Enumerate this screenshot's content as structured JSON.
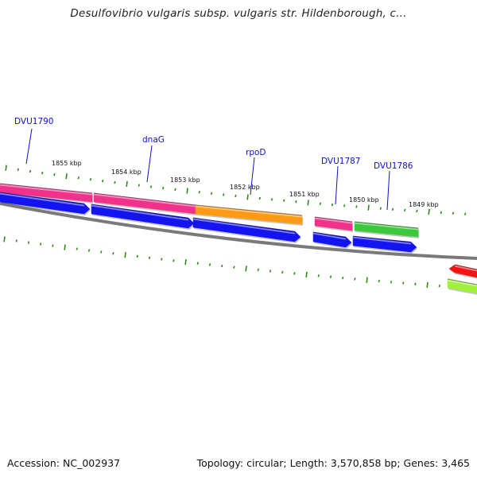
{
  "header": {
    "title": "Desulfovibrio vulgaris subsp. vulgaris str. Hildenborough, c..."
  },
  "footer": {
    "accession_text": "Accession: NC_002937",
    "summary_text": "Topology: circular; Length: 3,570,858 bp; Genes: 3,465"
  },
  "map": {
    "genome": {
      "accession": "NC_002937",
      "topology": "circular",
      "length_bp": "3,570,858",
      "genes": "3,465"
    },
    "colors": {
      "backbone": "#7a7a7a",
      "tick": "#2b8a18",
      "gene_label": "#1010c8",
      "pink_feature": "#f0328c",
      "blue_feature": "#1414f0",
      "orange_feature": "#ff9a14",
      "green_feature": "#3cc83c",
      "red_feature": "#f01414",
      "lime_feature": "#a0f03c"
    },
    "position_labels": [
      {
        "id": "kbp-1855",
        "text": "1855 kbp"
      },
      {
        "id": "kbp-1854",
        "text": "1854 kbp"
      },
      {
        "id": "kbp-1853",
        "text": "1853 kbp"
      },
      {
        "id": "kbp-1852",
        "text": "1852 kbp"
      },
      {
        "id": "kbp-1851",
        "text": "1851 kbp"
      },
      {
        "id": "kbp-1850",
        "text": "1850 kbp"
      },
      {
        "id": "kbp-1849",
        "text": "1849 kbp"
      }
    ],
    "gene_labels": [
      {
        "id": "dvu1790",
        "text": "DVU1790"
      },
      {
        "id": "dnag",
        "text": "dnaG"
      },
      {
        "id": "rpod",
        "text": "rpoD"
      },
      {
        "id": "dvu1787",
        "text": "DVU1787"
      },
      {
        "id": "dvu1786",
        "text": "DVU1786"
      }
    ],
    "features": [
      {
        "id": "feat-pink-1",
        "color_key": "pink_feature",
        "strand": "upper"
      },
      {
        "id": "feat-pink-2",
        "color_key": "pink_feature",
        "strand": "upper"
      },
      {
        "id": "feat-orange",
        "color_key": "orange_feature",
        "strand": "upper"
      },
      {
        "id": "feat-pink-3",
        "color_key": "pink_feature",
        "strand": "upper"
      },
      {
        "id": "feat-green",
        "color_key": "green_feature",
        "strand": "upper"
      },
      {
        "id": "feat-blue-1",
        "color_key": "blue_feature",
        "strand": "lower"
      },
      {
        "id": "feat-blue-2",
        "color_key": "blue_feature",
        "strand": "lower"
      },
      {
        "id": "feat-blue-3",
        "color_key": "blue_feature",
        "strand": "lower"
      },
      {
        "id": "feat-blue-4",
        "color_key": "blue_feature",
        "strand": "lower"
      },
      {
        "id": "feat-blue-5",
        "color_key": "blue_feature",
        "strand": "lower"
      },
      {
        "id": "feat-red",
        "color_key": "red_feature",
        "strand": "outer"
      },
      {
        "id": "feat-lime",
        "color_key": "lime_feature",
        "strand": "outer"
      }
    ]
  }
}
